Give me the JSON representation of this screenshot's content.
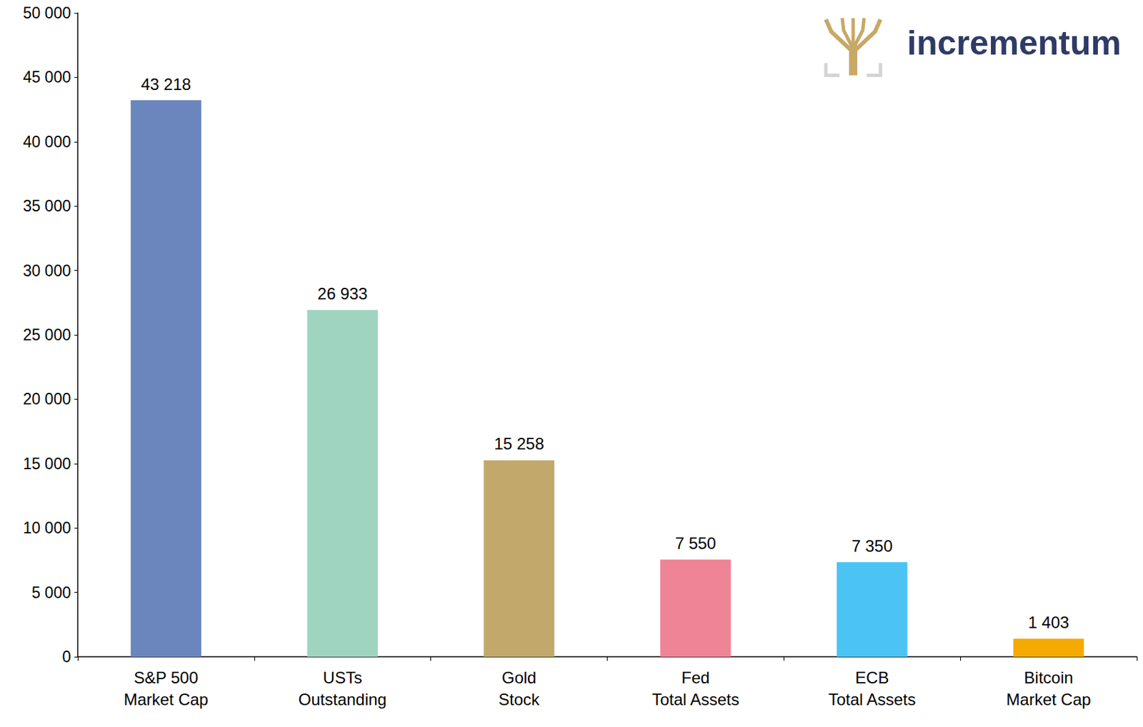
{
  "chart_data": {
    "type": "bar",
    "logo_text": "incrementum",
    "categories": [
      "S&P 500\nMarket Cap",
      "USTs\nOutstanding",
      "Gold\nStock",
      "Fed\nTotal Assets",
      "ECB\nTotal Assets",
      "Bitcoin\nMarket Cap"
    ],
    "values": [
      43218,
      26933,
      15258,
      7550,
      7350,
      1403
    ],
    "value_labels": [
      "43 218",
      "26 933",
      "15 258",
      "7 550",
      "7 350",
      "1 403"
    ],
    "colors": [
      "#6b86bd",
      "#9fd4c1",
      "#c2a96b",
      "#ef8497",
      "#4bc4f5",
      "#f4aa00"
    ],
    "ylim": [
      0,
      50000
    ],
    "yticks": [
      0,
      {
        "value": 5000,
        "label": "5 000"
      },
      {
        "value": 10000,
        "label": "10 000"
      },
      {
        "value": 15000,
        "label": "15 000"
      },
      {
        "value": 20000,
        "label": "20 000"
      },
      {
        "value": 25000,
        "label": "25 000"
      },
      {
        "value": 30000,
        "label": "30 000"
      },
      {
        "value": 35000,
        "label": "35 000"
      },
      {
        "value": 40000,
        "label": "40 000"
      },
      {
        "value": 45000,
        "label": "45 000"
      },
      {
        "value": 50000,
        "label": "50 000"
      }
    ],
    "grid": false,
    "data_labels": true
  }
}
